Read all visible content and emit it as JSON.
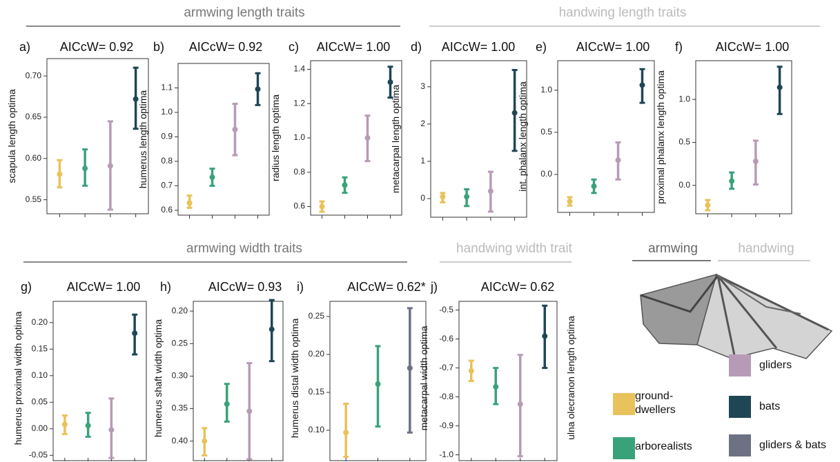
{
  "headers": {
    "armwing_length": "armwing length traits",
    "handwing_length": "handwing length traits",
    "armwing_width": "armwing width traits",
    "handwing_width": "handwing width trait",
    "armwing": "armwing",
    "handwing": "handwing"
  },
  "annotation": "ulna olecranon length optima",
  "legend": [
    {
      "name": "gliders",
      "color": "#b79bb6"
    },
    {
      "name": "ground-dwellers",
      "color": "#e8c25a"
    },
    {
      "name": "bats",
      "color": "#1f4655"
    },
    {
      "name": "arborealists",
      "color": "#3aa27a"
    },
    {
      "name": "gliders & bats",
      "color": "#6c7184"
    }
  ],
  "chart_data": [
    {
      "type": "pointrange",
      "label": "a)",
      "title": "AICcW= 0.92",
      "ylabel": "scapula length optima",
      "categories": [
        null,
        null,
        null,
        null
      ],
      "values": [
        0.581,
        0.588,
        0.591,
        0.672
      ],
      "lower": [
        0.565,
        0.567,
        0.538,
        0.636
      ],
      "upper": [
        0.598,
        0.611,
        0.645,
        0.71
      ],
      "colors": [
        "#e8c25a",
        "#3aa27a",
        "#b79bb6",
        "#1f4655"
      ],
      "ylim": [
        0.533,
        0.721
      ],
      "yticks": [
        {
          "value": 0.7,
          "label": "0.70"
        },
        0.65,
        {
          "value": 0.6,
          "label": "0.60"
        },
        0.55
      ]
    },
    {
      "type": "pointrange",
      "label": "b)",
      "title": "AICcW= 0.92",
      "ylabel": "humerus length optima",
      "categories": [
        null,
        null,
        null,
        null
      ],
      "values": [
        0.63,
        0.735,
        0.93,
        1.095
      ],
      "lower": [
        0.61,
        0.7,
        0.825,
        1.03
      ],
      "upper": [
        0.66,
        0.77,
        1.035,
        1.16
      ],
      "colors": [
        "#e8c25a",
        "#3aa27a",
        "#b79bb6",
        "#1f4655"
      ],
      "ylim": [
        0.58,
        1.2
      ],
      "yticks": [
        1.1,
        {
          "value": 1.0,
          "label": "1.0"
        },
        0.9,
        0.8,
        0.7,
        0.6
      ]
    },
    {
      "type": "pointrange",
      "label": "c)",
      "title": "AICcW= 1.00",
      "ylabel": "radius length optima",
      "categories": [
        null,
        null,
        null,
        null
      ],
      "values": [
        0.6,
        0.725,
        1.0,
        1.325
      ],
      "lower": [
        0.57,
        0.68,
        0.865,
        1.235
      ],
      "upper": [
        0.63,
        0.77,
        1.13,
        1.415
      ],
      "colors": [
        "#e8c25a",
        "#3aa27a",
        "#b79bb6",
        "#1f4655"
      ],
      "ylim": [
        0.55,
        1.45
      ],
      "yticks": [
        1.4,
        1.2,
        {
          "value": 1.0,
          "label": "1.0"
        },
        0.8,
        0.6
      ]
    },
    {
      "type": "pointrange",
      "label": "d)",
      "title": "AICcW= 1.00",
      "ylabel": "metacarpal length optima",
      "categories": [
        null,
        null,
        null,
        null
      ],
      "values": [
        0.05,
        0.05,
        0.2,
        2.3
      ],
      "lower": [
        -0.1,
        -0.2,
        -0.35,
        1.28
      ],
      "upper": [
        0.15,
        0.25,
        0.72,
        3.45
      ],
      "colors": [
        "#e8c25a",
        "#3aa27a",
        "#b79bb6",
        "#1f4655"
      ],
      "ylim": [
        -0.5,
        3.7
      ],
      "yticks": [
        3,
        2,
        1,
        0
      ]
    },
    {
      "type": "pointrange",
      "label": "e)",
      "title": "AICcW= 1.00",
      "ylabel": "int. phalanx length optima",
      "categories": [
        null,
        null,
        null,
        null
      ],
      "values": [
        -0.32,
        -0.14,
        0.17,
        1.06
      ],
      "lower": [
        -0.37,
        -0.22,
        -0.06,
        0.85
      ],
      "upper": [
        -0.27,
        -0.06,
        0.38,
        1.25
      ],
      "colors": [
        "#e8c25a",
        "#3aa27a",
        "#b79bb6",
        "#1f4655"
      ],
      "ylim": [
        -0.45,
        1.35
      ],
      "yticks": [
        {
          "value": 1.0,
          "label": "1.0"
        },
        0.5,
        {
          "value": 0.0,
          "label": "0.0"
        }
      ]
    },
    {
      "type": "pointrange",
      "label": "f)",
      "title": "AICcW= 1.00",
      "ylabel": "proximal phalanx length optima",
      "categories": [
        null,
        null,
        null,
        null
      ],
      "values": [
        -0.23,
        0.05,
        0.28,
        1.14
      ],
      "lower": [
        -0.29,
        -0.04,
        0.01,
        0.83
      ],
      "upper": [
        -0.17,
        0.15,
        0.52,
        1.38
      ],
      "colors": [
        "#e8c25a",
        "#3aa27a",
        "#b79bb6",
        "#1f4655"
      ],
      "ylim": [
        -0.33,
        1.45
      ],
      "yticks": [
        {
          "value": 1.0,
          "label": "1.0"
        },
        0.5,
        {
          "value": 0.0,
          "label": "0.0"
        }
      ]
    },
    {
      "type": "pointrange",
      "label": "g)",
      "title": "AICcW= 1.00",
      "ylabel": "humerus proximal width optima",
      "categories": [
        null,
        null,
        null,
        null
      ],
      "values": [
        0.008,
        0.006,
        -0.002,
        0.18
      ],
      "lower": [
        -0.01,
        -0.015,
        -0.055,
        0.14
      ],
      "upper": [
        0.025,
        0.03,
        0.057,
        0.215
      ],
      "colors": [
        "#e8c25a",
        "#3aa27a",
        "#b79bb6",
        "#1f4655"
      ],
      "ylim": [
        -0.06,
        0.24
      ],
      "yticks": [
        {
          "value": 0.2,
          "label": "0.20"
        },
        0.15,
        {
          "value": 0.1,
          "label": "0.10"
        },
        0.05,
        {
          "value": 0.0,
          "label": "0.00"
        },
        -0.05
      ]
    },
    {
      "type": "pointrange",
      "label": "h)",
      "title": "AICcW= 0.93",
      "ylabel": "humerus shaft width optima",
      "categories": [
        null,
        null,
        null,
        null
      ],
      "values": [
        0.4,
        0.343,
        0.354,
        0.228
      ],
      "lower": [
        0.38,
        0.312,
        0.28,
        0.183
      ],
      "upper": [
        0.422,
        0.37,
        0.428,
        0.277
      ],
      "colors": [
        "#e8c25a",
        "#3aa27a",
        "#b79bb6",
        "#1f4655"
      ],
      "ylim": [
        0.43,
        0.185
      ],
      "yticks": [
        {
          "value": 0.2,
          "label": "0.20"
        },
        0.25,
        {
          "value": 0.3,
          "label": "0.30"
        },
        0.35,
        {
          "value": 0.4,
          "label": "0.40"
        }
      ]
    },
    {
      "type": "pointrange",
      "label": "i)",
      "title": "AICcW= 0.62*",
      "ylabel": "humerus distal width optima",
      "categories": [
        null,
        null,
        null
      ],
      "values": [
        0.097,
        0.161,
        0.182
      ],
      "lower": [
        0.065,
        0.105,
        0.097
      ],
      "upper": [
        0.135,
        0.211,
        0.261
      ],
      "colors": [
        "#e8c25a",
        "#3aa27a",
        "#6c7184"
      ],
      "ylim": [
        0.06,
        0.27
      ],
      "yticks": [
        0.25,
        {
          "value": 0.2,
          "label": "0.20"
        },
        0.15,
        {
          "value": 0.1,
          "label": "0.10"
        }
      ]
    },
    {
      "type": "pointrange",
      "label": "j)",
      "title": "AICcW= 0.62",
      "ylabel": "metacarpal width optima",
      "categories": [
        null,
        null,
        null,
        null
      ],
      "values": [
        -0.71,
        -0.765,
        -0.825,
        -0.59
      ],
      "lower": [
        -0.745,
        -0.825,
        -1.005,
        -0.7
      ],
      "upper": [
        -0.675,
        -0.7,
        -0.655,
        -0.485
      ],
      "colors": [
        "#e8c25a",
        "#3aa27a",
        "#b79bb6",
        "#1f4655"
      ],
      "ylim": [
        -1.02,
        -0.47
      ],
      "yticks": [
        -0.5,
        -0.6,
        -0.7,
        -0.8,
        -0.9,
        {
          "value": -1.0,
          "label": "-1.0"
        }
      ]
    }
  ]
}
